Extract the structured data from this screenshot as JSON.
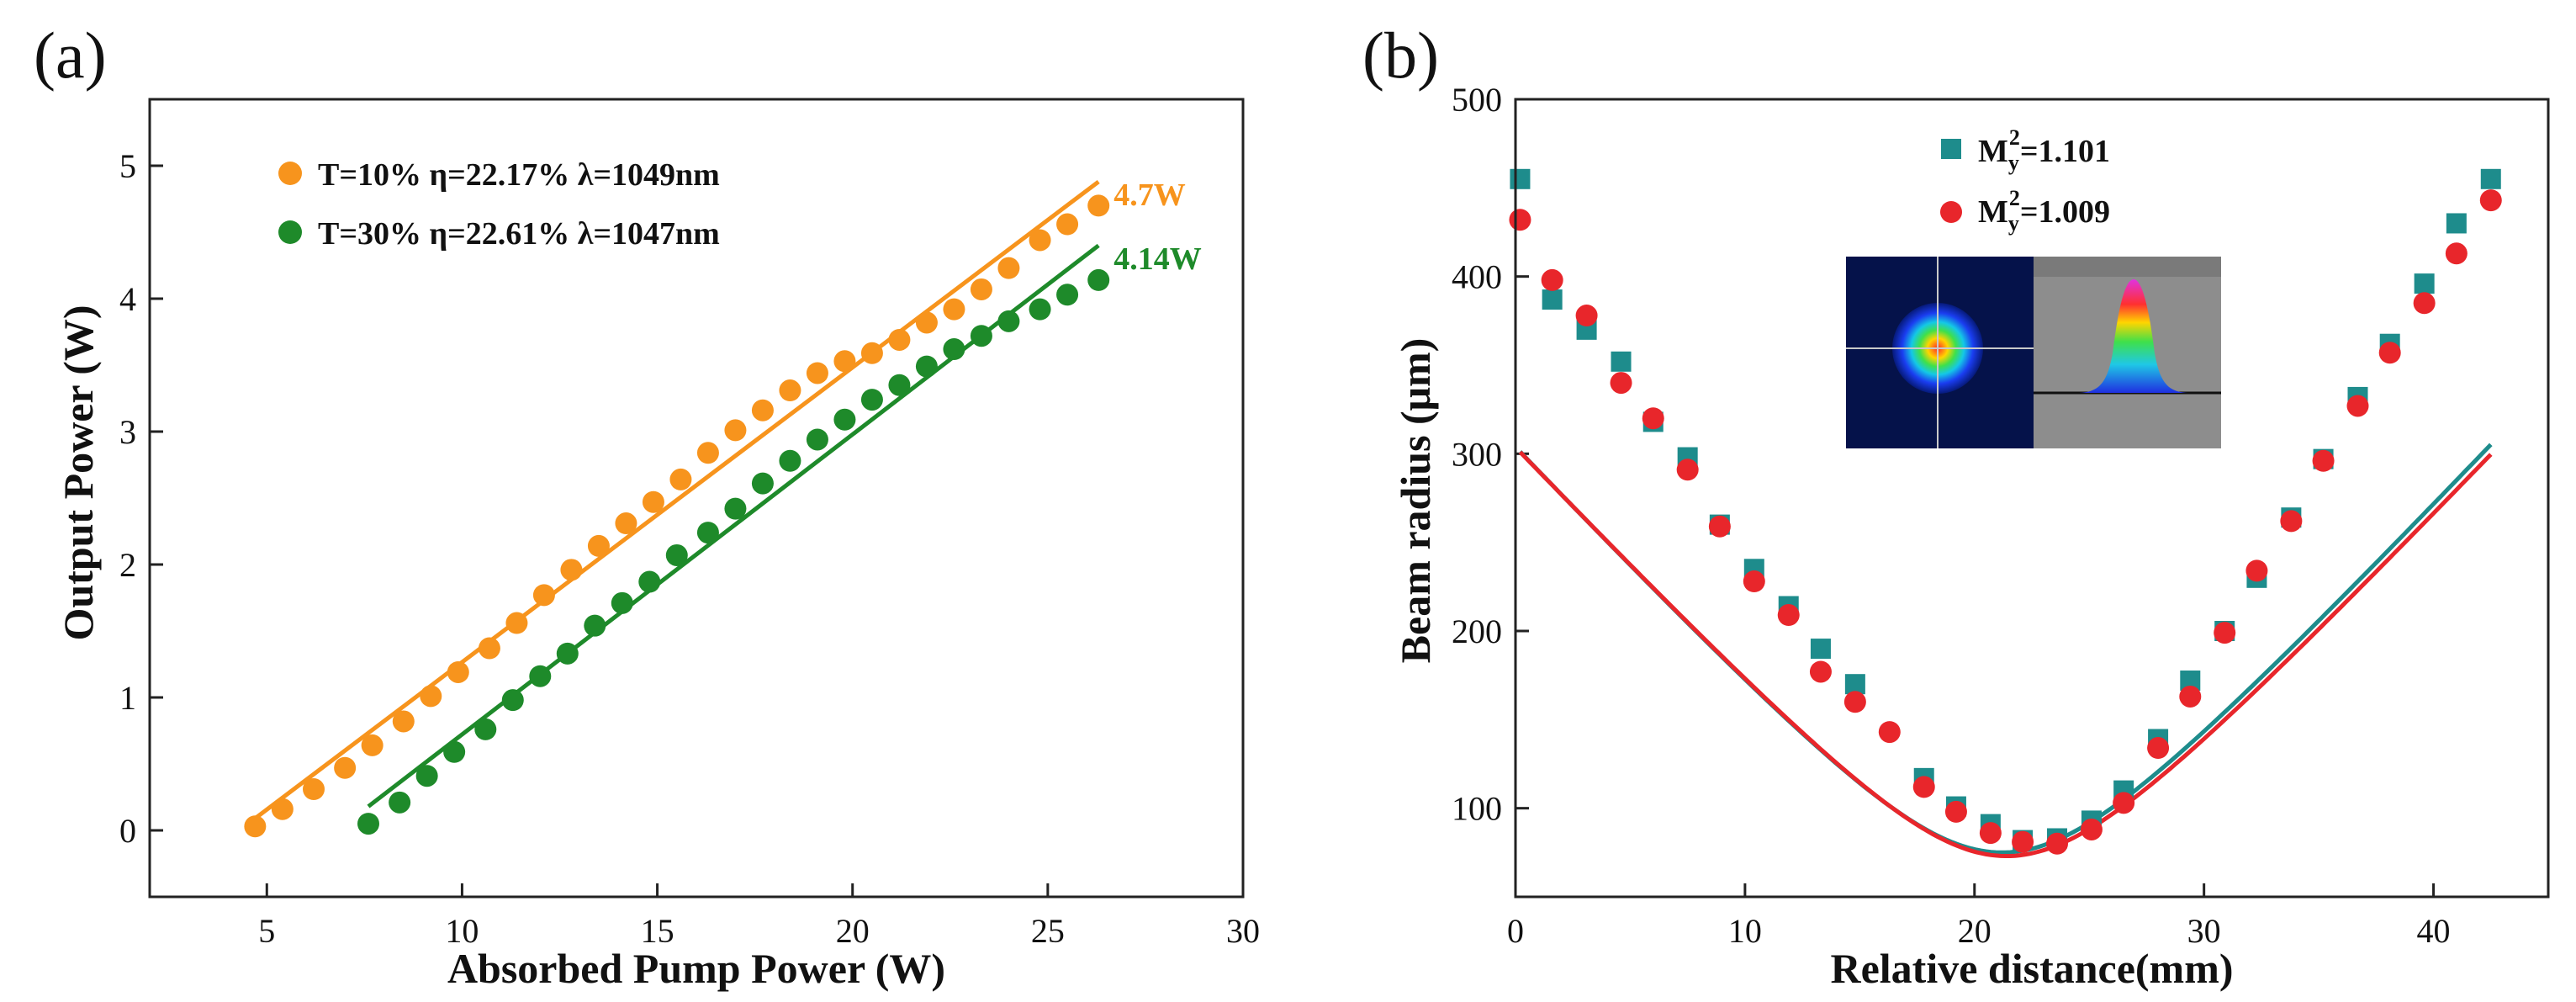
{
  "chart_data": [
    {
      "panel": "(a)",
      "type": "scatter",
      "xlabel": "Absorbed Pump Power (W)",
      "ylabel": "Output Power (W)",
      "xlim": [
        2,
        30
      ],
      "ylim": [
        -0.5,
        5.5
      ],
      "xticks": [
        5,
        10,
        15,
        20,
        25,
        30
      ],
      "yticks": [
        0,
        1,
        2,
        3,
        4,
        5
      ],
      "series": [
        {
          "name": "T=10% η=22.17% λ=1049nm",
          "color": "#f7941d",
          "x": [
            4.7,
            5.4,
            6.2,
            7.0,
            7.7,
            8.5,
            9.2,
            9.9,
            10.7,
            11.4,
            12.1,
            12.8,
            13.5,
            14.2,
            14.9,
            15.6,
            16.3,
            17.0,
            17.7,
            18.4,
            19.1,
            19.8,
            20.5,
            21.2,
            21.9,
            22.6,
            23.3,
            24.0,
            24.8,
            25.5,
            26.3
          ],
          "y": [
            0.03,
            0.16,
            0.31,
            0.47,
            0.64,
            0.82,
            1.01,
            1.19,
            1.37,
            1.56,
            1.77,
            1.96,
            2.14,
            2.31,
            2.47,
            2.64,
            2.84,
            3.01,
            3.16,
            3.31,
            3.44,
            3.53,
            3.59,
            3.69,
            3.82,
            3.92,
            4.07,
            4.23,
            4.44,
            4.56,
            4.7
          ],
          "fit": {
            "x": [
              4.7,
              26.3
            ],
            "y": [
              0.09,
              4.88
            ]
          },
          "end_label": "4.7W"
        },
        {
          "name": "T=30% η=22.61% λ=1047nm",
          "color": "#1e8a2a",
          "x": [
            7.6,
            8.4,
            9.1,
            9.8,
            10.6,
            11.3,
            12.0,
            12.7,
            13.4,
            14.1,
            14.8,
            15.5,
            16.3,
            17.0,
            17.7,
            18.4,
            19.1,
            19.8,
            20.5,
            21.2,
            21.9,
            22.6,
            23.3,
            24.0,
            24.8,
            25.5,
            26.3
          ],
          "y": [
            0.05,
            0.21,
            0.41,
            0.59,
            0.76,
            0.98,
            1.16,
            1.33,
            1.54,
            1.71,
            1.87,
            2.07,
            2.24,
            2.42,
            2.61,
            2.78,
            2.94,
            3.09,
            3.24,
            3.35,
            3.49,
            3.62,
            3.72,
            3.83,
            3.92,
            4.03,
            4.14
          ],
          "fit": {
            "x": [
              7.6,
              26.3
            ],
            "y": [
              0.18,
              4.4
            ]
          },
          "end_label": "4.14W"
        }
      ]
    },
    {
      "panel": "(b)",
      "type": "scatter",
      "xlabel": "Relative distance(mm)",
      "ylabel": "Beam radius (μm)",
      "xlim": [
        0,
        45
      ],
      "ylim": [
        50,
        500
      ],
      "xticks": [
        0,
        10,
        20,
        30,
        40
      ],
      "yticks": [
        100,
        200,
        300,
        400,
        500
      ],
      "series": [
        {
          "name": "My2=1.101",
          "legend_base": "M",
          "legend_sub": "y",
          "legend_sup": "2",
          "legend_value": "=1.101",
          "marker": "square",
          "color": "#1e8c8c",
          "x": [
            0.2,
            1.6,
            3.1,
            4.6,
            6.0,
            7.5,
            8.9,
            10.4,
            11.9,
            13.3,
            14.8,
            17.8,
            19.2,
            20.7,
            22.1,
            23.6,
            25.1,
            26.5,
            28.0,
            29.4,
            30.9,
            32.3,
            33.8,
            35.2,
            36.7,
            38.1,
            39.6,
            41.0,
            42.5
          ],
          "y": [
            455,
            387,
            370,
            352,
            318,
            298,
            260,
            235,
            214,
            190,
            170,
            117,
            101,
            91,
            82,
            83,
            93,
            110,
            139,
            172,
            200,
            230,
            264,
            297,
            332,
            362,
            396,
            430,
            455
          ],
          "fit": {
            "x0": 21.2,
            "w0": 75,
            "zr": 5.4
          }
        },
        {
          "name": "My2=1.009",
          "legend_base": "M",
          "legend_sub": "y",
          "legend_sup": "2",
          "legend_value": "=1.009",
          "marker": "circle",
          "color": "#e8262b",
          "x": [
            0.2,
            1.6,
            3.1,
            4.6,
            6.0,
            7.5,
            8.9,
            10.4,
            11.9,
            13.3,
            14.8,
            16.3,
            17.8,
            19.2,
            20.7,
            22.1,
            23.6,
            25.1,
            26.5,
            28.0,
            29.4,
            30.9,
            32.3,
            33.8,
            35.2,
            36.7,
            38.1,
            39.6,
            41.0,
            42.5
          ],
          "y": [
            432,
            398,
            378,
            340,
            320,
            291,
            259,
            228,
            209,
            177,
            160,
            143,
            112,
            98,
            86,
            81,
            80,
            88,
            103,
            134,
            163,
            199,
            234,
            262,
            296,
            327,
            357,
            385,
            413,
            443
          ],
          "fit": {
            "x0": 21.4,
            "w0": 73,
            "zr": 5.3
          }
        }
      ]
    }
  ]
}
